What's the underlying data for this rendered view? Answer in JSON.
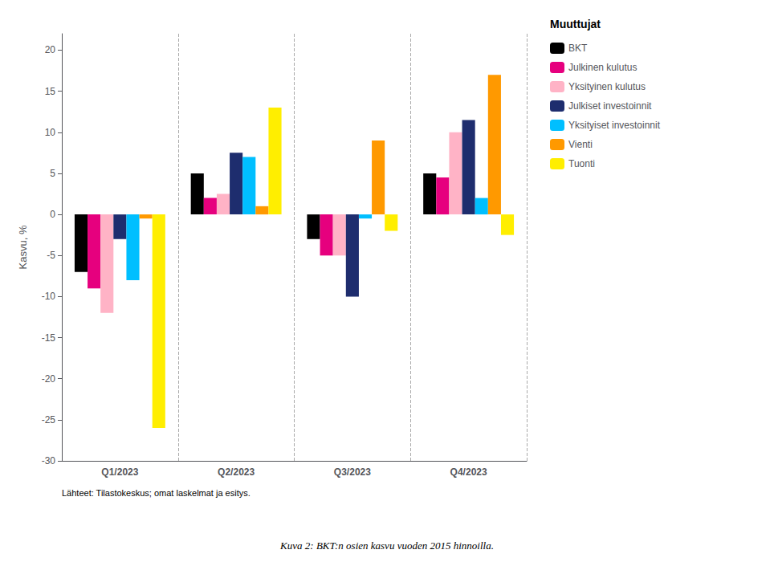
{
  "chart_data": {
    "type": "bar",
    "categories": [
      "Q1/2023",
      "Q2/2023",
      "Q3/2023",
      "Q4/2023"
    ],
    "series": [
      {
        "name": "BKT",
        "color": "#000000",
        "values": [
          -7.0,
          5.0,
          -3.0,
          5.0
        ]
      },
      {
        "name": "Julkinen kulutus",
        "color": "#e6007e",
        "values": [
          -9.0,
          2.0,
          -5.0,
          4.5
        ]
      },
      {
        "name": "Yksityinen kulutus",
        "color": "#ffb3c6",
        "values": [
          -12.0,
          2.5,
          -5.0,
          10.0
        ]
      },
      {
        "name": "Julkiset investoinnit",
        "color": "#1e2d6e",
        "values": [
          -3.0,
          7.5,
          -10.0,
          11.5
        ]
      },
      {
        "name": "Yksityiset investoinnit",
        "color": "#00bfff",
        "values": [
          -8.0,
          7.0,
          -0.5,
          2.0
        ]
      },
      {
        "name": "Vienti",
        "color": "#ff9900",
        "values": [
          -0.5,
          1.0,
          9.0,
          17.0
        ]
      },
      {
        "name": "Tuonti",
        "color": "#ffee00",
        "values": [
          -26.0,
          13.0,
          -2.0,
          -2.5
        ]
      }
    ],
    "ylabel": "Kasvu, %",
    "ylim": [
      -30,
      22
    ],
    "yticks": [
      -30,
      -25,
      -20,
      -15,
      -10,
      -5,
      0,
      5,
      10,
      15,
      20
    ],
    "grid": false,
    "legend": "upper right",
    "legend_title": "Muuttujat",
    "source": "Lähteet: Tilastokeskus; omat laskelmat ja esitys.",
    "caption": "Kuva 2: BKT:n osien kasvu vuoden 2015 hinnoilla."
  }
}
